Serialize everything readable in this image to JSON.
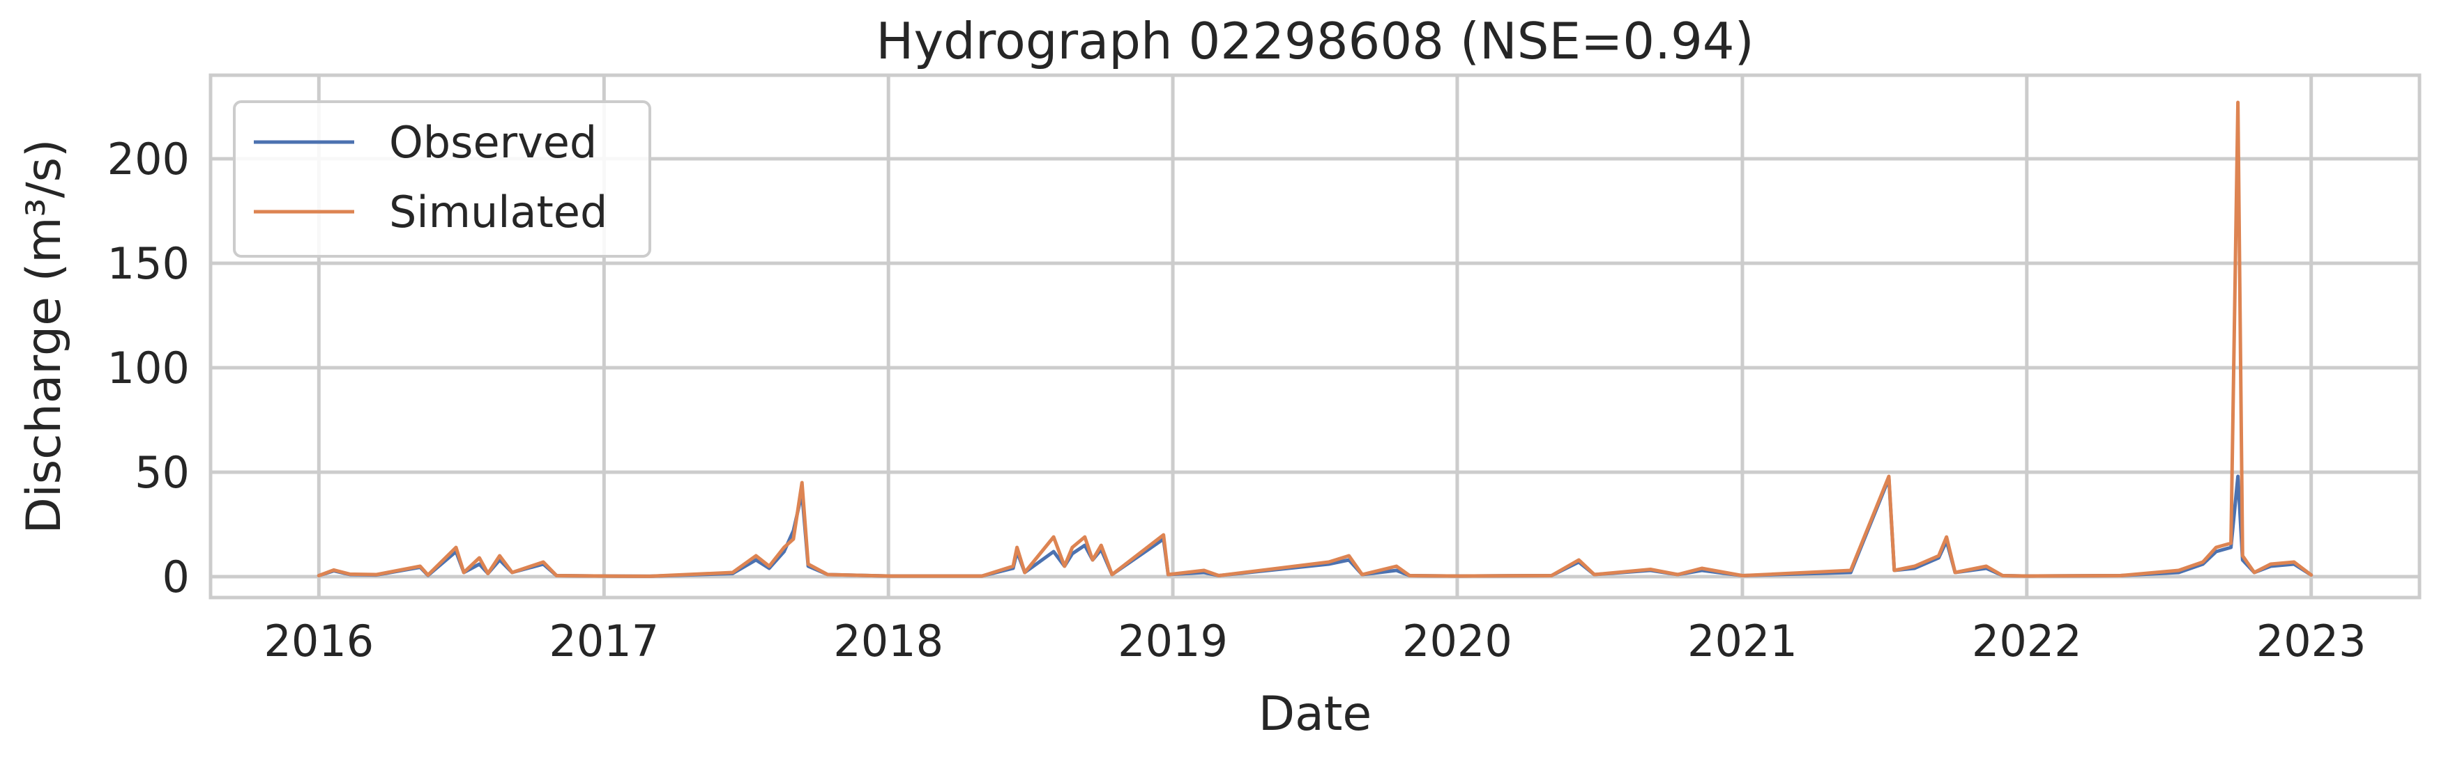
{
  "chart_data": {
    "type": "line",
    "title": "Hydrograph 02298608  (NSE=0.94)",
    "xlabel": "Date",
    "ylabel": "Discharge (m³/s)",
    "x_type": "date",
    "xlim": [
      "2015-08-15",
      "2023-05-20"
    ],
    "ylim": [
      -10,
      240
    ],
    "x_ticks": [
      "2016-01-01",
      "2017-01-01",
      "2018-01-01",
      "2019-01-01",
      "2020-01-01",
      "2021-01-01",
      "2022-01-01",
      "2023-01-01"
    ],
    "x_tick_labels": [
      "2016",
      "2017",
      "2018",
      "2019",
      "2020",
      "2021",
      "2022",
      "2023"
    ],
    "y_ticks": [
      0,
      50,
      100,
      150,
      200
    ],
    "y_tick_labels": [
      "0",
      "50",
      "100",
      "150",
      "200"
    ],
    "grid": true,
    "legend": "top-left",
    "series": [
      {
        "name": "Observed",
        "color": "#4c72b0",
        "points": [
          [
            "2016-01-01",
            0.5
          ],
          [
            "2016-01-20",
            2.8
          ],
          [
            "2016-02-10",
            1.0
          ],
          [
            "2016-03-15",
            0.8
          ],
          [
            "2016-05-10",
            4.5
          ],
          [
            "2016-05-20",
            0.6
          ],
          [
            "2016-06-25",
            12.0
          ],
          [
            "2016-07-05",
            2.0
          ],
          [
            "2016-07-25",
            6.0
          ],
          [
            "2016-08-05",
            1.5
          ],
          [
            "2016-08-20",
            8.0
          ],
          [
            "2016-09-05",
            2.0
          ],
          [
            "2016-10-15",
            6.0
          ],
          [
            "2016-11-01",
            0.5
          ],
          [
            "2017-01-01",
            0.3
          ],
          [
            "2017-03-01",
            0.2
          ],
          [
            "2017-06-15",
            1.5
          ],
          [
            "2017-07-15",
            8.0
          ],
          [
            "2017-08-01",
            4.0
          ],
          [
            "2017-08-20",
            12.0
          ],
          [
            "2017-09-01",
            22.0
          ],
          [
            "2017-09-12",
            40.0
          ],
          [
            "2017-09-20",
            5.0
          ],
          [
            "2017-10-15",
            1.0
          ],
          [
            "2018-01-01",
            0.3
          ],
          [
            "2018-05-01",
            0.3
          ],
          [
            "2018-06-10",
            4.0
          ],
          [
            "2018-06-15",
            12.0
          ],
          [
            "2018-06-25",
            2.0
          ],
          [
            "2018-08-01",
            12.0
          ],
          [
            "2018-08-15",
            5.0
          ],
          [
            "2018-08-25",
            11.0
          ],
          [
            "2018-09-10",
            15.0
          ],
          [
            "2018-09-20",
            8.0
          ],
          [
            "2018-10-01",
            13.0
          ],
          [
            "2018-10-15",
            1.0
          ],
          [
            "2018-12-20",
            18.0
          ],
          [
            "2018-12-26",
            1.0
          ],
          [
            "2019-02-10",
            2.0
          ],
          [
            "2019-03-01",
            0.5
          ],
          [
            "2019-07-20",
            6.0
          ],
          [
            "2019-08-15",
            8.0
          ],
          [
            "2019-09-01",
            1.0
          ],
          [
            "2019-10-15",
            3.0
          ],
          [
            "2019-11-01",
            0.5
          ],
          [
            "2020-01-01",
            0.3
          ],
          [
            "2020-05-01",
            0.5
          ],
          [
            "2020-06-05",
            7.0
          ],
          [
            "2020-06-25",
            1.0
          ],
          [
            "2020-09-05",
            3.0
          ],
          [
            "2020-10-10",
            1.0
          ],
          [
            "2020-11-10",
            3.0
          ],
          [
            "2021-01-01",
            0.5
          ],
          [
            "2021-05-20",
            2.0
          ],
          [
            "2021-07-08",
            47.0
          ],
          [
            "2021-07-15",
            3.0
          ],
          [
            "2021-08-10",
            4.0
          ],
          [
            "2021-09-10",
            9.0
          ],
          [
            "2021-09-20",
            17.0
          ],
          [
            "2021-10-01",
            2.0
          ],
          [
            "2021-11-10",
            4.0
          ],
          [
            "2021-12-01",
            0.5
          ],
          [
            "2022-01-01",
            0.3
          ],
          [
            "2022-05-01",
            0.5
          ],
          [
            "2022-07-15",
            2.0
          ],
          [
            "2022-08-15",
            6.0
          ],
          [
            "2022-09-01",
            12.0
          ],
          [
            "2022-09-20",
            14.0
          ],
          [
            "2022-09-29",
            48.0
          ],
          [
            "2022-10-05",
            8.0
          ],
          [
            "2022-10-20",
            2.0
          ],
          [
            "2022-11-10",
            5.0
          ],
          [
            "2022-12-10",
            6.0
          ],
          [
            "2023-01-01",
            0.8
          ]
        ]
      },
      {
        "name": "Simulated",
        "color": "#dd8452",
        "points": [
          [
            "2016-01-01",
            0.5
          ],
          [
            "2016-01-20",
            3.2
          ],
          [
            "2016-02-10",
            1.2
          ],
          [
            "2016-03-15",
            1.0
          ],
          [
            "2016-05-10",
            5.0
          ],
          [
            "2016-05-20",
            0.8
          ],
          [
            "2016-06-25",
            14.0
          ],
          [
            "2016-07-05",
            2.0
          ],
          [
            "2016-07-25",
            9.0
          ],
          [
            "2016-08-05",
            1.5
          ],
          [
            "2016-08-20",
            10.0
          ],
          [
            "2016-09-05",
            2.0
          ],
          [
            "2016-10-15",
            7.0
          ],
          [
            "2016-11-01",
            0.5
          ],
          [
            "2017-01-01",
            0.3
          ],
          [
            "2017-03-01",
            0.2
          ],
          [
            "2017-06-15",
            2.0
          ],
          [
            "2017-07-15",
            10.0
          ],
          [
            "2017-08-01",
            5.0
          ],
          [
            "2017-08-20",
            14.0
          ],
          [
            "2017-09-01",
            18.0
          ],
          [
            "2017-09-12",
            45.0
          ],
          [
            "2017-09-20",
            6.0
          ],
          [
            "2017-10-15",
            1.0
          ],
          [
            "2018-01-01",
            0.3
          ],
          [
            "2018-05-01",
            0.3
          ],
          [
            "2018-06-10",
            5.0
          ],
          [
            "2018-06-15",
            14.0
          ],
          [
            "2018-06-25",
            2.0
          ],
          [
            "2018-08-01",
            19.0
          ],
          [
            "2018-08-15",
            5.0
          ],
          [
            "2018-08-25",
            14.0
          ],
          [
            "2018-09-10",
            19.0
          ],
          [
            "2018-09-20",
            8.0
          ],
          [
            "2018-10-01",
            15.0
          ],
          [
            "2018-10-15",
            1.0
          ],
          [
            "2018-12-20",
            20.0
          ],
          [
            "2018-12-26",
            1.0
          ],
          [
            "2019-02-10",
            3.0
          ],
          [
            "2019-03-01",
            0.5
          ],
          [
            "2019-07-20",
            7.0
          ],
          [
            "2019-08-15",
            10.0
          ],
          [
            "2019-09-01",
            1.0
          ],
          [
            "2019-10-15",
            5.0
          ],
          [
            "2019-11-01",
            0.5
          ],
          [
            "2020-01-01",
            0.3
          ],
          [
            "2020-05-01",
            0.5
          ],
          [
            "2020-06-05",
            8.0
          ],
          [
            "2020-06-25",
            1.0
          ],
          [
            "2020-09-05",
            3.5
          ],
          [
            "2020-10-10",
            1.0
          ],
          [
            "2020-11-10",
            4.0
          ],
          [
            "2021-01-01",
            0.5
          ],
          [
            "2021-05-20",
            3.0
          ],
          [
            "2021-07-08",
            48.0
          ],
          [
            "2021-07-15",
            3.0
          ],
          [
            "2021-08-10",
            5.0
          ],
          [
            "2021-09-10",
            10.0
          ],
          [
            "2021-09-20",
            19.0
          ],
          [
            "2021-10-01",
            2.0
          ],
          [
            "2021-11-10",
            5.0
          ],
          [
            "2021-12-01",
            0.5
          ],
          [
            "2022-01-01",
            0.3
          ],
          [
            "2022-05-01",
            0.5
          ],
          [
            "2022-07-15",
            3.0
          ],
          [
            "2022-08-15",
            7.0
          ],
          [
            "2022-09-01",
            14.0
          ],
          [
            "2022-09-20",
            16.0
          ],
          [
            "2022-09-29",
            227.0
          ],
          [
            "2022-10-05",
            10.0
          ],
          [
            "2022-10-20",
            2.0
          ],
          [
            "2022-11-10",
            6.0
          ],
          [
            "2022-12-10",
            7.0
          ],
          [
            "2023-01-01",
            0.8
          ]
        ]
      }
    ]
  }
}
